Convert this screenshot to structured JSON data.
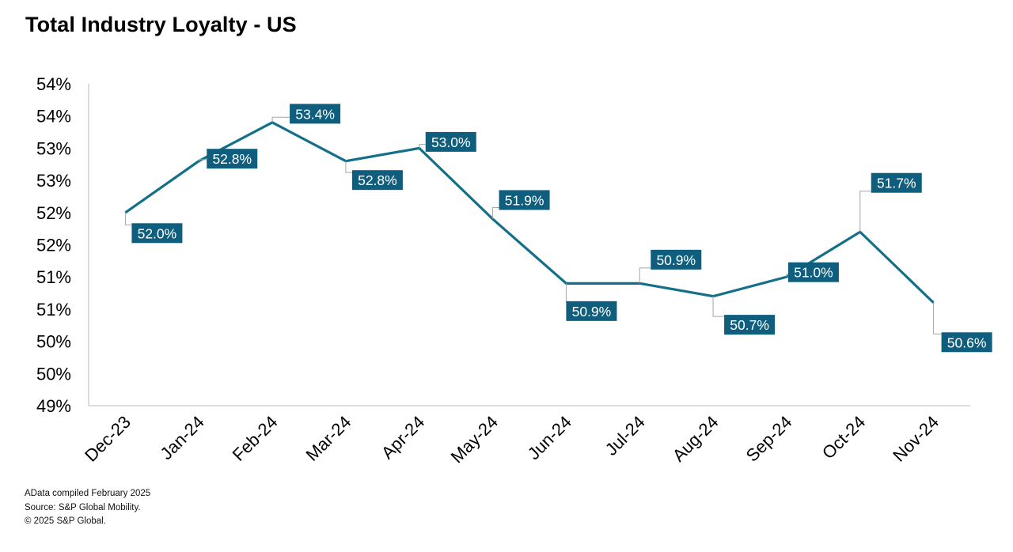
{
  "title": "Total Industry Loyalty - US",
  "footer": {
    "line1": "AData compiled February 2025",
    "line2": "Source: S&P Global Mobility.",
    "line3": "© 2025 S&P Global."
  },
  "colors": {
    "line": "#137088",
    "label_bg": "#0f5e7d",
    "label_text": "#ffffff",
    "axis": "#c8c8c8",
    "leader": "#a6a6a6"
  },
  "chart_data": {
    "type": "line",
    "title": "Total Industry Loyalty - US",
    "xlabel": "",
    "ylabel": "",
    "categories": [
      "Dec-23",
      "Jan-24",
      "Feb-24",
      "Mar-24",
      "Apr-24",
      "May-24",
      "Jun-24",
      "Jul-24",
      "Aug-24",
      "Sep-24",
      "Oct-24",
      "Nov-24"
    ],
    "series": [
      {
        "values": [
          52.0,
          52.8,
          53.4,
          52.8,
          53.0,
          51.9,
          50.9,
          50.9,
          50.7,
          51.0,
          51.7,
          50.6
        ],
        "labels": [
          "52.0%",
          "52.8%",
          "53.4%",
          "52.8%",
          "53.0%",
          "51.9%",
          "50.9%",
          "50.9%",
          "50.7%",
          "51.0%",
          "51.7%",
          "50.6%"
        ]
      }
    ],
    "ylim": [
      49.0,
      54.0
    ],
    "yticks": [
      49.0,
      49.5,
      50.0,
      50.5,
      51.0,
      51.5,
      52.0,
      52.5,
      53.0,
      53.5,
      54.0
    ],
    "ytick_labels": [
      "49%",
      "50%",
      "50%",
      "51%",
      "51%",
      "52%",
      "52%",
      "53%",
      "53%",
      "54%",
      "54%"
    ],
    "grid": false,
    "legend": "none"
  }
}
